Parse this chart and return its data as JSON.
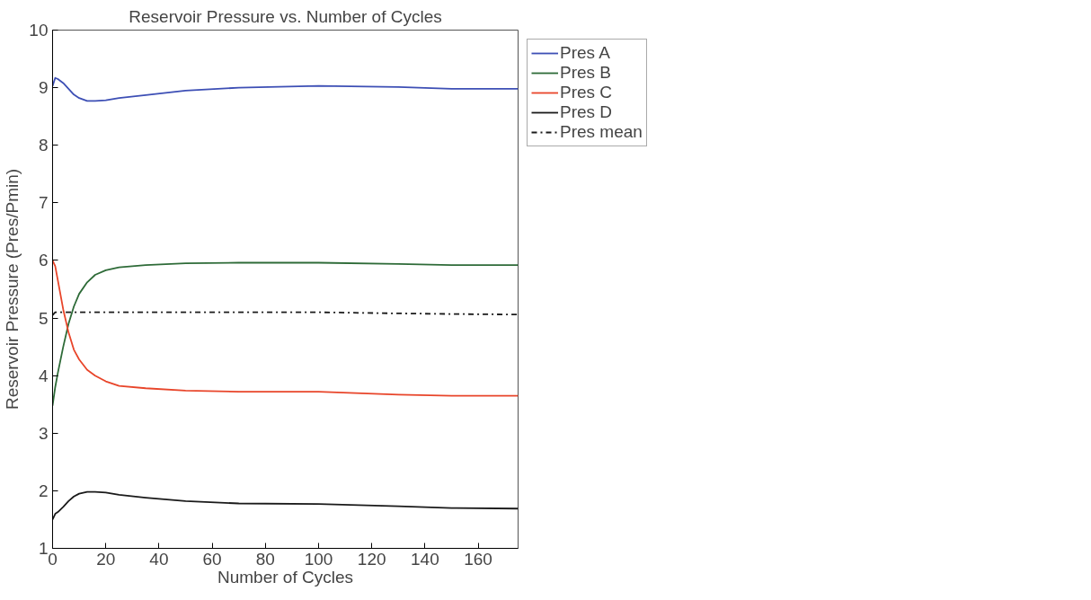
{
  "chart_data": {
    "type": "line",
    "title": "Reservoir Pressure vs. Number of Cycles",
    "xlabel": "Number of Cycles",
    "ylabel": "Reservoir Pressure (Pres/Pmin)",
    "x": [
      0,
      1,
      2,
      4,
      6,
      8,
      10,
      13,
      16,
      20,
      25,
      35,
      50,
      70,
      100,
      130,
      150,
      175
    ],
    "series": [
      {
        "name": "Pres A",
        "color": "#3d4fb5",
        "values": [
          9.03,
          9.17,
          9.15,
          9.08,
          8.98,
          8.88,
          8.82,
          8.77,
          8.77,
          8.78,
          8.82,
          8.87,
          8.95,
          9.0,
          9.03,
          9.01,
          8.98,
          8.98
        ]
      },
      {
        "name": "Pres B",
        "color": "#2e6b38",
        "values": [
          3.48,
          3.8,
          4.05,
          4.5,
          4.9,
          5.2,
          5.42,
          5.62,
          5.75,
          5.83,
          5.88,
          5.92,
          5.95,
          5.96,
          5.96,
          5.94,
          5.92,
          5.92
        ]
      },
      {
        "name": "Pres C",
        "color": "#e8452a",
        "values": [
          6.0,
          5.9,
          5.65,
          5.15,
          4.75,
          4.45,
          4.28,
          4.1,
          4.0,
          3.9,
          3.82,
          3.78,
          3.74,
          3.72,
          3.72,
          3.67,
          3.65,
          3.65
        ]
      },
      {
        "name": "Pres D",
        "color": "#1a1a1a",
        "values": [
          1.5,
          1.6,
          1.63,
          1.72,
          1.82,
          1.9,
          1.95,
          1.98,
          1.98,
          1.97,
          1.93,
          1.88,
          1.82,
          1.78,
          1.77,
          1.73,
          1.7,
          1.69
        ]
      },
      {
        "name": "Pres mean",
        "color": "#1a1a1a",
        "line_style": "dashdot",
        "values": [
          5.05,
          5.1,
          5.1,
          5.1,
          5.1,
          5.1,
          5.1,
          5.1,
          5.1,
          5.1,
          5.1,
          5.1,
          5.1,
          5.1,
          5.1,
          5.08,
          5.07,
          5.06
        ]
      }
    ],
    "xlim": [
      0,
      175
    ],
    "xticks": [
      0,
      20,
      40,
      60,
      80,
      100,
      120,
      140,
      160
    ],
    "ylim": [
      1,
      10
    ],
    "yticks": [
      1,
      2,
      3,
      4,
      5,
      6,
      7,
      8,
      9,
      10
    ],
    "grid": false,
    "legend": "right",
    "line_style": "solid",
    "marker": "none"
  }
}
